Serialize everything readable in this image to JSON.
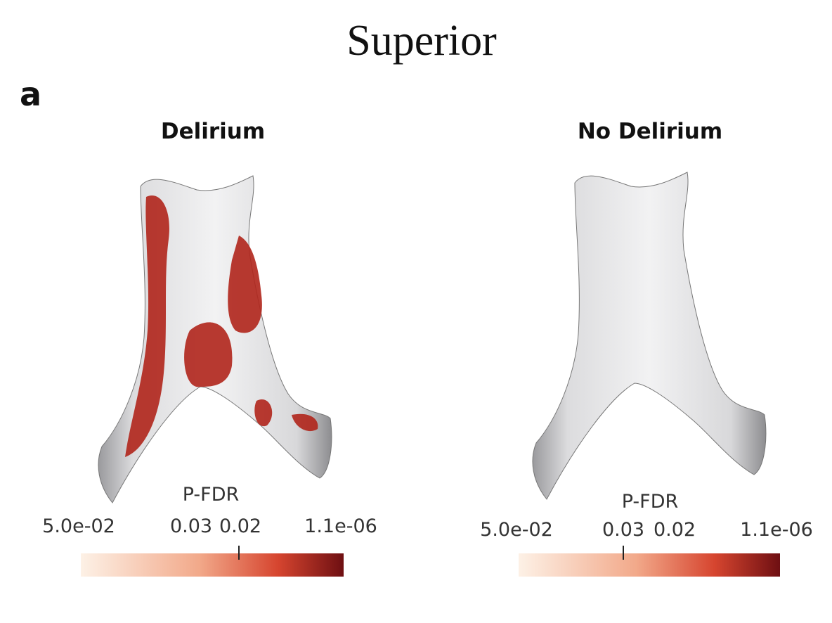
{
  "header": {
    "title": "Superior",
    "panel_label": "a"
  },
  "panels": [
    {
      "title": "Delirium",
      "colorbar": {
        "label": "P-FDR",
        "ticks": [
          "5.0e-02",
          "0.03",
          "0.02",
          "1.1e-06"
        ]
      }
    },
    {
      "title": "No Delirium",
      "colorbar": {
        "label": "P-FDR",
        "ticks": [
          "5.0e-02",
          "0.03",
          "0.02",
          "1.1e-06"
        ]
      }
    }
  ]
}
